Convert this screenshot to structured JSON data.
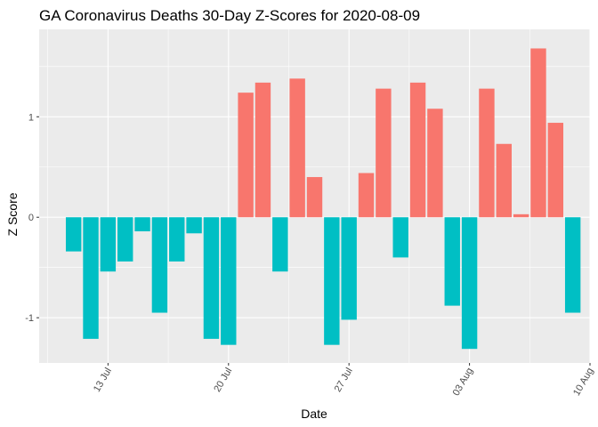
{
  "chart_data": {
    "type": "bar",
    "title": "GA Coronavirus Deaths 30-Day Z-Scores for 2020-08-09",
    "xlabel": "Date",
    "ylabel": "Z Score",
    "ylim": [
      -1.45,
      1.87
    ],
    "xlim": [
      "2020-07-09",
      "2020-08-10"
    ],
    "grid": true,
    "legend": "none",
    "colors": {
      "positive": "#F8766D",
      "negative": "#00BFC4",
      "panel": "#EBEBEB",
      "grid": "#FFFFFF"
    },
    "x_ticks": [
      {
        "date": "2020-07-13",
        "label": "13 Jul"
      },
      {
        "date": "2020-07-20",
        "label": "20 Jul"
      },
      {
        "date": "2020-07-27",
        "label": "27 Jul"
      },
      {
        "date": "2020-08-03",
        "label": "03 Aug"
      },
      {
        "date": "2020-08-10",
        "label": "10 Aug"
      }
    ],
    "y_ticks": [
      {
        "value": -1,
        "label": "-1"
      },
      {
        "value": 0,
        "label": "0"
      },
      {
        "value": 1,
        "label": "1"
      }
    ],
    "categories": [
      "2020-07-11",
      "2020-07-12",
      "2020-07-13",
      "2020-07-14",
      "2020-07-15",
      "2020-07-16",
      "2020-07-17",
      "2020-07-18",
      "2020-07-19",
      "2020-07-20",
      "2020-07-21",
      "2020-07-22",
      "2020-07-23",
      "2020-07-24",
      "2020-07-25",
      "2020-07-26",
      "2020-07-27",
      "2020-07-28",
      "2020-07-29",
      "2020-07-30",
      "2020-07-31",
      "2020-08-01",
      "2020-08-02",
      "2020-08-03",
      "2020-08-04",
      "2020-08-05",
      "2020-08-06",
      "2020-08-07",
      "2020-08-08",
      "2020-08-09"
    ],
    "values": [
      -0.34,
      -1.21,
      -0.54,
      -0.44,
      -0.14,
      -0.95,
      -0.44,
      -0.16,
      -1.21,
      -1.27,
      1.24,
      1.34,
      -0.54,
      1.38,
      0.4,
      -1.27,
      -1.02,
      0.44,
      1.28,
      -0.4,
      1.34,
      1.08,
      -0.88,
      -1.31,
      1.28,
      0.73,
      0.03,
      1.68,
      0.94,
      -0.95
    ]
  }
}
